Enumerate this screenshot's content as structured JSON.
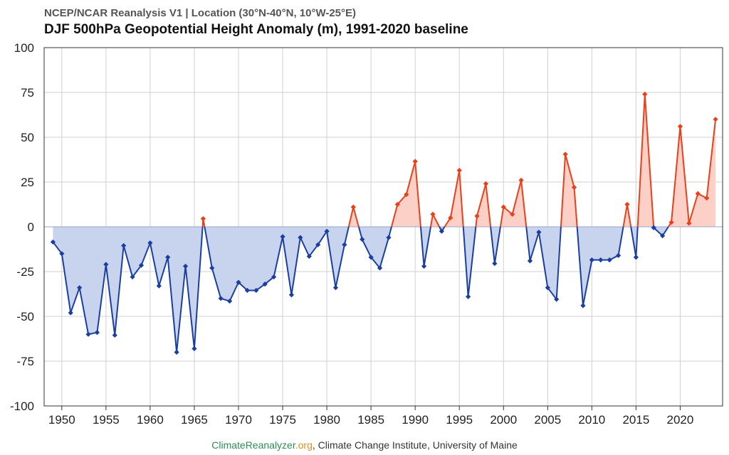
{
  "header": {
    "supertitle": "NCEP/NCAR Reanalysis V1 | Location (30°N-40°N, 10°W-25°E)",
    "title": "DJF 500hPa Geopotential Height Anomaly (m), 1991-2020 baseline"
  },
  "footer": {
    "site_name": "ClimateReanalyzer",
    "site_tld": ".org",
    "affiliation": ", Climate Change Institute, University of Maine"
  },
  "colors": {
    "positive_line": "#e8401a",
    "positive_fill": "#fdd0c7",
    "negative_line": "#1a3fa0",
    "negative_fill": "#c8d3ee",
    "grid": "#d0d0d0",
    "zero_line": "#9aa6c8"
  },
  "chart_data": {
    "type": "area",
    "title": "DJF 500hPa Geopotential Height Anomaly (m), 1991-2020 baseline",
    "subtitle": "NCEP/NCAR Reanalysis V1 | Location (30°N-40°N, 10°W-25°E)",
    "xlabel": "",
    "ylabel": "",
    "xlim": [
      1948,
      2024.8
    ],
    "ylim": [
      -100,
      100
    ],
    "grid": true,
    "legend": "none",
    "x_ticks": [
      1950,
      1955,
      1960,
      1965,
      1970,
      1975,
      1980,
      1985,
      1990,
      1995,
      2000,
      2005,
      2010,
      2015,
      2020
    ],
    "y_ticks": [
      100,
      75,
      50,
      25,
      0,
      -25,
      -50,
      -75,
      -100
    ],
    "x": [
      1949,
      1950,
      1951,
      1952,
      1953,
      1954,
      1955,
      1956,
      1957,
      1958,
      1959,
      1960,
      1961,
      1962,
      1963,
      1964,
      1965,
      1966,
      1967,
      1968,
      1969,
      1970,
      1971,
      1972,
      1973,
      1974,
      1975,
      1976,
      1977,
      1978,
      1979,
      1980,
      1981,
      1982,
      1983,
      1984,
      1985,
      1986,
      1987,
      1988,
      1989,
      1990,
      1991,
      1992,
      1993,
      1994,
      1995,
      1996,
      1997,
      1998,
      1999,
      2000,
      2001,
      2002,
      2003,
      2004,
      2005,
      2006,
      2007,
      2008,
      2009,
      2010,
      2011,
      2012,
      2013,
      2014,
      2015,
      2016,
      2017,
      2018,
      2019,
      2020,
      2021,
      2022,
      2023,
      2024
    ],
    "values": [
      -8.5,
      -15,
      -48,
      -34,
      -60,
      -59,
      -21,
      -60.5,
      -10.5,
      -28,
      -21.5,
      -9,
      -33,
      -17,
      -70,
      -22,
      -68,
      4.5,
      -23,
      -40,
      -41.5,
      -31,
      -35.5,
      -35.5,
      -32,
      -28,
      -5.5,
      -38,
      -6,
      -16.5,
      -10,
      -2.5,
      -34,
      -10,
      11,
      -7,
      -17,
      -23,
      -6,
      12.5,
      18,
      36.5,
      -22,
      7,
      -2.5,
      5,
      31.5,
      -39,
      6,
      24,
      -20.5,
      11,
      7,
      26,
      -19,
      -3,
      -34,
      -40.5,
      40.5,
      22,
      -44,
      -18.5,
      -18.5,
      -18.5,
      -16,
      12.5,
      -17,
      74,
      -0.5,
      -5,
      2.5,
      56,
      2,
      18.5,
      16,
      60
    ]
  }
}
